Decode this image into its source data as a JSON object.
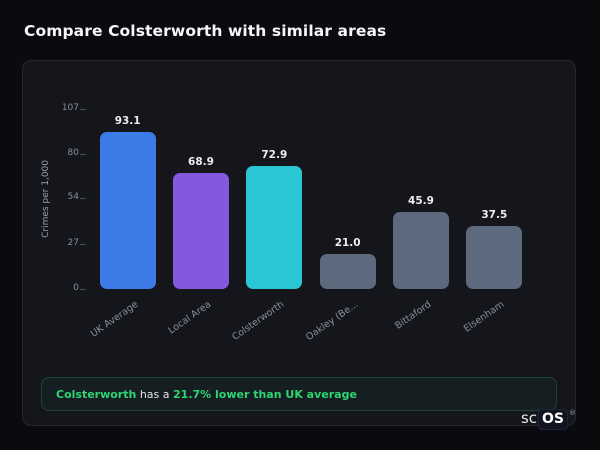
{
  "page": {
    "title": "Compare Colsterworth with similar areas"
  },
  "chart_data": {
    "type": "bar",
    "title": "",
    "xlabel": "",
    "ylabel": "Crimes per 1,000",
    "categories": [
      "UK Average",
      "Local Area",
      "Colsterworth",
      "Oakley (Be...",
      "Bittaford",
      "Elsenham"
    ],
    "values": [
      93.1,
      68.9,
      72.9,
      21.0,
      45.9,
      37.5
    ],
    "value_labels": [
      "93.1",
      "68.9",
      "72.9",
      "21.0",
      "45.9",
      "37.5"
    ],
    "bar_colors": [
      "#3d7be6",
      "#8558e0",
      "#2bc7d4",
      "#5d6a7d",
      "#5d6a7d",
      "#5d6a7d"
    ],
    "yticks": [
      0,
      27,
      54,
      80,
      107
    ],
    "ylim": [
      0,
      107
    ],
    "grid": false,
    "legend": false
  },
  "footer_note": {
    "highlight_area": "Colsterworth",
    "middle": " has a ",
    "highlight_stat": "21.7% lower than UK average"
  },
  "logo": {
    "prefix": "sc",
    "suffix": "OS",
    "registered": "®"
  }
}
